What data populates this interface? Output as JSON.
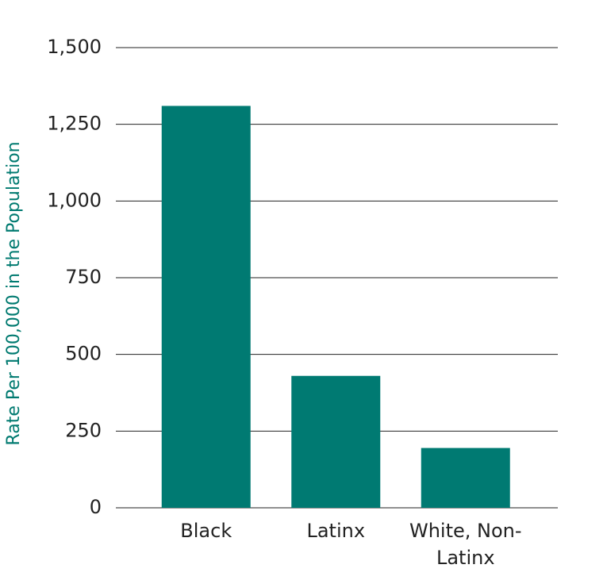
{
  "chart_data": {
    "type": "bar",
    "y_label": "Rate Per 100,000 in the Population",
    "categories": [
      "Black",
      "Latinx",
      "White, Non-Latinx"
    ],
    "values": [
      1310,
      430,
      195
    ],
    "color": "#007a72",
    "ylim": [
      0,
      1500
    ],
    "yticks": [
      0,
      250,
      500,
      750,
      {
        "value": 1000,
        "label": "1,000"
      },
      {
        "value": 1250,
        "label": "1,250"
      },
      {
        "value": 1500,
        "label": "1,500"
      }
    ],
    "grid": true
  }
}
